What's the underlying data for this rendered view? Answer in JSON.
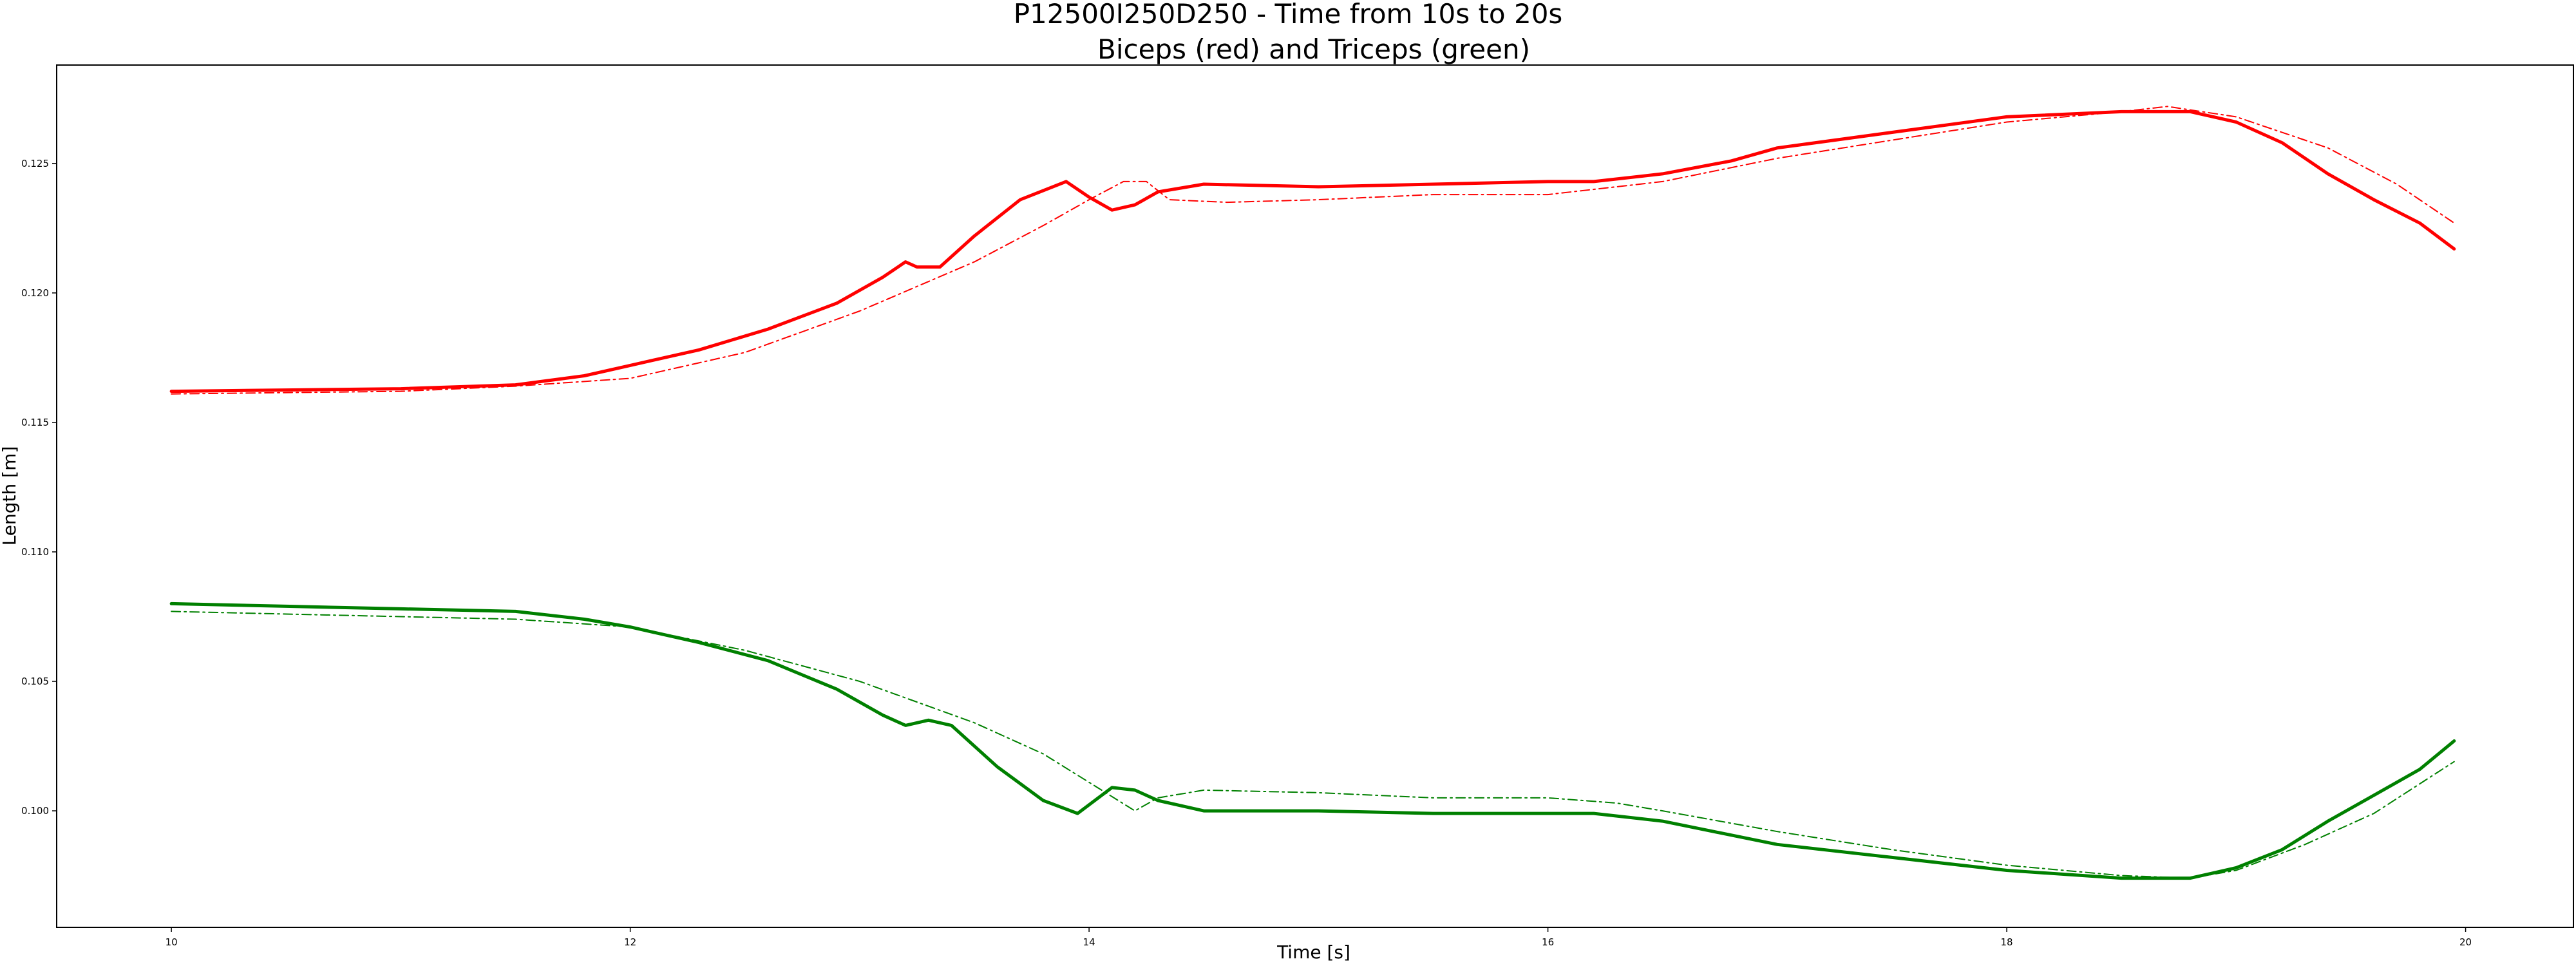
{
  "chart_data": {
    "type": "line",
    "title": "P12500I250D250 - Time from 10s to 20s",
    "subtitle": "Biceps (red) and Triceps (green)",
    "xlabel": "Time [s]",
    "ylabel": "Length [m]",
    "xlim": [
      9.5,
      20.47
    ],
    "ylim": [
      0.0955,
      0.1288
    ],
    "xticks": [
      "10",
      "12",
      "14",
      "16",
      "18",
      "20"
    ],
    "yticks": [
      "0.100",
      "0.105",
      "0.110",
      "0.115",
      "0.120",
      "0.125"
    ],
    "grid": false,
    "legend": "none",
    "colors": {
      "red": "#ff0000",
      "green": "#008000"
    },
    "series": [
      {
        "color": "red",
        "style": "solid",
        "points": [
          [
            10.0,
            0.1162
          ],
          [
            10.5,
            0.11625
          ],
          [
            11.0,
            0.1163
          ],
          [
            11.5,
            0.11645
          ],
          [
            11.8,
            0.1168
          ],
          [
            12.0,
            0.1172
          ],
          [
            12.3,
            0.1178
          ],
          [
            12.6,
            0.1186
          ],
          [
            12.9,
            0.1196
          ],
          [
            13.1,
            0.1206
          ],
          [
            13.2,
            0.1212
          ],
          [
            13.25,
            0.121
          ],
          [
            13.35,
            0.121
          ],
          [
            13.5,
            0.1222
          ],
          [
            13.7,
            0.1236
          ],
          [
            13.9,
            0.1243
          ],
          [
            14.0,
            0.1237
          ],
          [
            14.1,
            0.1232
          ],
          [
            14.2,
            0.1234
          ],
          [
            14.3,
            0.1239
          ],
          [
            14.5,
            0.1242
          ],
          [
            15.0,
            0.1241
          ],
          [
            15.5,
            0.1242
          ],
          [
            16.0,
            0.1243
          ],
          [
            16.2,
            0.1243
          ],
          [
            16.5,
            0.1246
          ],
          [
            16.8,
            0.1251
          ],
          [
            17.0,
            0.1256
          ],
          [
            17.5,
            0.1262
          ],
          [
            18.0,
            0.1268
          ],
          [
            18.5,
            0.127
          ],
          [
            18.8,
            0.127
          ],
          [
            19.0,
            0.1266
          ],
          [
            19.2,
            0.1258
          ],
          [
            19.4,
            0.1246
          ],
          [
            19.6,
            0.1236
          ],
          [
            19.8,
            0.1227
          ],
          [
            19.95,
            0.1217
          ]
        ]
      },
      {
        "color": "red",
        "style": "dashdot",
        "points": [
          [
            10.0,
            0.1161
          ],
          [
            11.0,
            0.1162
          ],
          [
            11.5,
            0.1164
          ],
          [
            12.0,
            0.1167
          ],
          [
            12.5,
            0.1177
          ],
          [
            13.0,
            0.1193
          ],
          [
            13.5,
            0.1212
          ],
          [
            13.8,
            0.1226
          ],
          [
            14.0,
            0.1236
          ],
          [
            14.15,
            0.1243
          ],
          [
            14.25,
            0.1243
          ],
          [
            14.35,
            0.1236
          ],
          [
            14.6,
            0.1235
          ],
          [
            15.0,
            0.1236
          ],
          [
            15.5,
            0.1238
          ],
          [
            16.0,
            0.1238
          ],
          [
            16.3,
            0.1241
          ],
          [
            16.5,
            0.1243
          ],
          [
            17.0,
            0.1252
          ],
          [
            17.5,
            0.1259
          ],
          [
            18.0,
            0.1266
          ],
          [
            18.5,
            0.127
          ],
          [
            18.7,
            0.1272
          ],
          [
            19.0,
            0.1268
          ],
          [
            19.4,
            0.1256
          ],
          [
            19.7,
            0.1242
          ],
          [
            19.95,
            0.1227
          ]
        ]
      },
      {
        "color": "green",
        "style": "solid",
        "points": [
          [
            10.0,
            0.108
          ],
          [
            10.5,
            0.1079
          ],
          [
            11.0,
            0.1078
          ],
          [
            11.5,
            0.1077
          ],
          [
            11.8,
            0.1074
          ],
          [
            12.0,
            0.1071
          ],
          [
            12.3,
            0.1065
          ],
          [
            12.6,
            0.1058
          ],
          [
            12.9,
            0.1047
          ],
          [
            13.1,
            0.1037
          ],
          [
            13.2,
            0.1033
          ],
          [
            13.3,
            0.1035
          ],
          [
            13.4,
            0.1033
          ],
          [
            13.6,
            0.1017
          ],
          [
            13.8,
            0.1004
          ],
          [
            13.95,
            0.0999
          ],
          [
            14.1,
            0.1009
          ],
          [
            14.2,
            0.1008
          ],
          [
            14.3,
            0.1004
          ],
          [
            14.5,
            0.1
          ],
          [
            15.0,
            0.1
          ],
          [
            15.5,
            0.0999
          ],
          [
            16.0,
            0.0999
          ],
          [
            16.2,
            0.0999
          ],
          [
            16.5,
            0.0996
          ],
          [
            17.0,
            0.0987
          ],
          [
            17.5,
            0.0982
          ],
          [
            18.0,
            0.0977
          ],
          [
            18.5,
            0.0974
          ],
          [
            18.8,
            0.0974
          ],
          [
            19.0,
            0.0978
          ],
          [
            19.2,
            0.0985
          ],
          [
            19.4,
            0.0996
          ],
          [
            19.6,
            0.1006
          ],
          [
            19.8,
            0.1016
          ],
          [
            19.95,
            0.1027
          ]
        ]
      },
      {
        "color": "green",
        "style": "dashdot",
        "points": [
          [
            10.0,
            0.1077
          ],
          [
            10.5,
            0.1076
          ],
          [
            11.0,
            0.1075
          ],
          [
            11.5,
            0.1074
          ],
          [
            12.0,
            0.1071
          ],
          [
            12.5,
            0.1062
          ],
          [
            13.0,
            0.105
          ],
          [
            13.5,
            0.1034
          ],
          [
            13.8,
            0.1022
          ],
          [
            14.0,
            0.1011
          ],
          [
            14.2,
            0.1
          ],
          [
            14.3,
            0.1005
          ],
          [
            14.5,
            0.1008
          ],
          [
            15.0,
            0.1007
          ],
          [
            15.5,
            0.1005
          ],
          [
            16.0,
            0.1005
          ],
          [
            16.3,
            0.1003
          ],
          [
            16.5,
            0.1
          ],
          [
            17.0,
            0.0992
          ],
          [
            17.5,
            0.0985
          ],
          [
            18.0,
            0.0979
          ],
          [
            18.5,
            0.0975
          ],
          [
            18.8,
            0.0974
          ],
          [
            19.0,
            0.0977
          ],
          [
            19.3,
            0.0987
          ],
          [
            19.6,
            0.0999
          ],
          [
            19.95,
            0.1019
          ]
        ]
      }
    ]
  }
}
